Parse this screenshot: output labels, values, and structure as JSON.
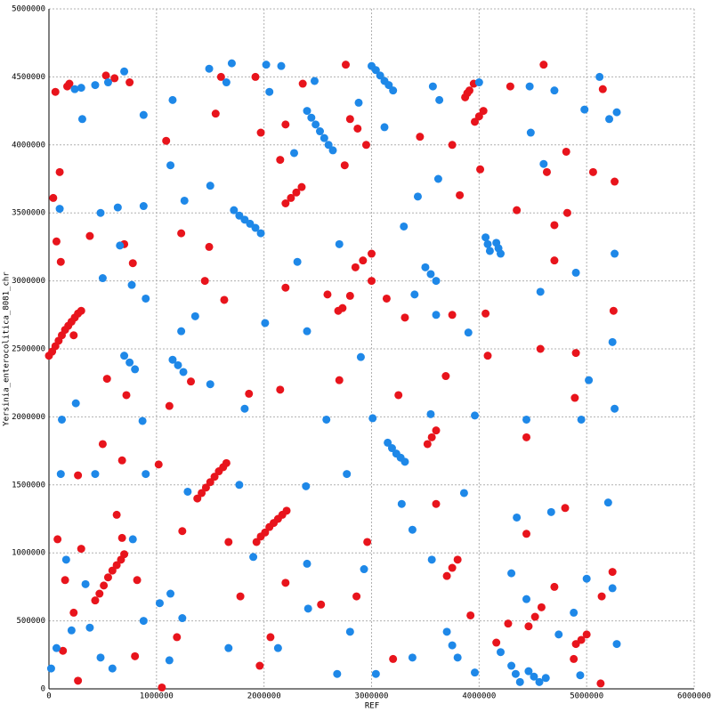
{
  "chart_data": {
    "type": "scatter",
    "x_label": "REF",
    "y_label": "Yersinia_enterocolitica_8081_chr",
    "xlim": [
      0,
      6000000
    ],
    "ylim": [
      0,
      5000000
    ],
    "xticks": [
      0,
      1000000,
      2000000,
      3000000,
      4000000,
      5000000,
      6000000
    ],
    "yticks": [
      0,
      500000,
      1000000,
      1500000,
      2000000,
      2500000,
      3000000,
      3500000,
      4000000,
      4500000,
      5000000
    ],
    "grid": true,
    "series": [
      {
        "color": "#e8141c",
        "x": [
          0,
          30000,
          60000,
          90000,
          120000,
          150000,
          180000,
          210000,
          240000,
          270000,
          300000,
          430000,
          470000,
          510000,
          550000,
          590000,
          630000,
          670000,
          700000,
          1380000,
          1420000,
          1460000,
          1500000,
          1540000,
          1580000,
          1620000,
          1650000,
          1930000,
          1970000,
          2010000,
          2050000,
          2090000,
          2130000,
          2170000,
          2210000,
          2200000,
          2250000,
          2300000,
          2350000,
          3960000,
          4000000,
          4040000,
          3870000,
          3910000,
          3950000,
          3520000,
          3560000,
          3600000,
          2850000,
          2920000,
          3000000,
          3700000,
          3750000,
          3800000,
          4900000,
          4950000,
          5000000,
          4460000,
          4520000,
          4580000,
          60000,
          170000,
          190000,
          530000,
          610000,
          750000,
          1090000,
          1550000,
          1600000,
          1920000,
          1970000,
          2200000,
          2360000,
          2760000,
          2800000,
          2870000,
          2950000,
          3750000,
          4290000,
          4600000,
          4630000,
          5150000,
          5060000,
          5260000,
          4810000,
          4820000,
          4010000,
          4350000,
          4700000,
          4700000,
          100000,
          40000,
          70000,
          110000,
          380000,
          700000,
          780000,
          1490000,
          1450000,
          1230000,
          2150000,
          2750000,
          3450000,
          3820000,
          3890000,
          3000000,
          2800000,
          2730000,
          2590000,
          2690000,
          3140000,
          3310000,
          3750000,
          4060000,
          4080000,
          4570000,
          4900000,
          5250000,
          4890000,
          4440000,
          3690000,
          3250000,
          2700000,
          2150000,
          1860000,
          1120000,
          720000,
          540000,
          230000,
          500000,
          680000,
          1020000,
          270000,
          80000,
          150000,
          300000,
          680000,
          820000,
          1240000,
          1670000,
          2200000,
          2530000,
          2960000,
          2860000,
          3200000,
          3600000,
          3920000,
          4160000,
          4270000,
          4440000,
          4700000,
          4800000,
          5140000,
          5240000,
          5130000,
          4880000,
          2060000,
          1960000,
          1780000,
          1190000,
          1050000,
          800000,
          270000,
          130000,
          230000,
          630000,
          1320000,
          2200000,
          1630000
        ],
        "values": [
          2450000,
          2480000,
          2520000,
          2560000,
          2600000,
          2640000,
          2670000,
          2700000,
          2730000,
          2760000,
          2780000,
          650000,
          700000,
          760000,
          820000,
          870000,
          910000,
          950000,
          990000,
          1400000,
          1440000,
          1480000,
          1520000,
          1560000,
          1600000,
          1630000,
          1660000,
          1080000,
          1120000,
          1150000,
          1190000,
          1220000,
          1250000,
          1280000,
          1310000,
          3570000,
          3610000,
          3650000,
          3690000,
          4170000,
          4210000,
          4250000,
          4350000,
          4400000,
          4450000,
          1800000,
          1850000,
          1900000,
          3100000,
          3150000,
          3200000,
          830000,
          890000,
          950000,
          330000,
          360000,
          400000,
          460000,
          530000,
          600000,
          4390000,
          4430000,
          4450000,
          4510000,
          4490000,
          4460000,
          4030000,
          4230000,
          4500000,
          4500000,
          4090000,
          4150000,
          4450000,
          4590000,
          4190000,
          4120000,
          4000000,
          4000000,
          4430000,
          4590000,
          3800000,
          4410000,
          3800000,
          3730000,
          3950000,
          3500000,
          3820000,
          3520000,
          3410000,
          3150000,
          3800000,
          3610000,
          3290000,
          3140000,
          3330000,
          3270000,
          3130000,
          3250000,
          3000000,
          3350000,
          3890000,
          3850000,
          4060000,
          3630000,
          4380000,
          3000000,
          2890000,
          2800000,
          2900000,
          2780000,
          2870000,
          2730000,
          2750000,
          2760000,
          2450000,
          2500000,
          2470000,
          2780000,
          2140000,
          1850000,
          2300000,
          2160000,
          2270000,
          2200000,
          2170000,
          2080000,
          2160000,
          2280000,
          2600000,
          1800000,
          1680000,
          1650000,
          1570000,
          1100000,
          800000,
          1030000,
          1110000,
          800000,
          1160000,
          1080000,
          780000,
          620000,
          1080000,
          680000,
          220000,
          1360000,
          540000,
          340000,
          480000,
          1140000,
          750000,
          1330000,
          680000,
          860000,
          40000,
          220000,
          380000,
          170000,
          680000,
          380000,
          10000,
          240000,
          60000,
          280000,
          560000,
          1280000,
          2260000,
          2950000,
          2860000
        ]
      },
      {
        "color": "#1e88e8",
        "x": [
          2400000,
          2440000,
          2480000,
          2520000,
          2560000,
          2600000,
          2640000,
          3000000,
          3040000,
          3080000,
          3120000,
          3160000,
          3200000,
          1720000,
          1770000,
          1820000,
          1870000,
          1920000,
          1970000,
          3150000,
          3190000,
          3230000,
          3270000,
          3310000,
          700000,
          750000,
          800000,
          1150000,
          1200000,
          1250000,
          3700000,
          3750000,
          3800000,
          4300000,
          4340000,
          4380000,
          4460000,
          4510000,
          4560000,
          4060000,
          4080000,
          4100000,
          4160000,
          4180000,
          4200000,
          3500000,
          3550000,
          3600000,
          20000,
          70000,
          160000,
          120000,
          100000,
          240000,
          300000,
          310000,
          430000,
          550000,
          700000,
          880000,
          1150000,
          1490000,
          1650000,
          1700000,
          2020000,
          2160000,
          2050000,
          2280000,
          2470000,
          2880000,
          3120000,
          3570000,
          3630000,
          4000000,
          4470000,
          4480000,
          4700000,
          4980000,
          5120000,
          5280000,
          5210000,
          4600000,
          3620000,
          3430000,
          3300000,
          2700000,
          2310000,
          1500000,
          1260000,
          1130000,
          880000,
          640000,
          480000,
          660000,
          500000,
          770000,
          900000,
          1230000,
          1360000,
          2010000,
          2400000,
          2900000,
          3400000,
          3600000,
          3900000,
          4570000,
          4900000,
          5260000,
          5240000,
          5020000,
          5260000,
          4950000,
          4440000,
          3960000,
          3550000,
          3010000,
          2580000,
          1820000,
          1500000,
          870000,
          250000,
          110000,
          430000,
          900000,
          1290000,
          1770000,
          2390000,
          2770000,
          3280000,
          3860000,
          4350000,
          4670000,
          5200000,
          5000000,
          4880000,
          4440000,
          4300000,
          3560000,
          3380000,
          2930000,
          2410000,
          2400000,
          1900000,
          1240000,
          1130000,
          1030000,
          880000,
          780000,
          340000,
          210000,
          380000,
          480000,
          590000,
          1120000,
          1670000,
          2130000,
          2680000,
          2800000,
          3040000,
          3380000,
          4200000,
          4740000,
          4940000,
          5280000,
          5240000,
          4620000,
          3960000
        ],
        "values": [
          4250000,
          4200000,
          4150000,
          4100000,
          4050000,
          4000000,
          3960000,
          4580000,
          4550000,
          4510000,
          4470000,
          4440000,
          4400000,
          3520000,
          3480000,
          3450000,
          3420000,
          3390000,
          3350000,
          1810000,
          1770000,
          1730000,
          1700000,
          1670000,
          2450000,
          2400000,
          2350000,
          2420000,
          2380000,
          2330000,
          420000,
          320000,
          230000,
          170000,
          110000,
          50000,
          130000,
          90000,
          50000,
          3320000,
          3270000,
          3220000,
          3280000,
          3240000,
          3200000,
          3100000,
          3050000,
          3000000,
          150000,
          300000,
          950000,
          1980000,
          3530000,
          4410000,
          4420000,
          4190000,
          4440000,
          4460000,
          4540000,
          4220000,
          4330000,
          4560000,
          4460000,
          4600000,
          4590000,
          4580000,
          4390000,
          3940000,
          4470000,
          4310000,
          4130000,
          4430000,
          4330000,
          4460000,
          4430000,
          4090000,
          4400000,
          4260000,
          4500000,
          4240000,
          4190000,
          3860000,
          3750000,
          3620000,
          3400000,
          3270000,
          3140000,
          3700000,
          3590000,
          3850000,
          3550000,
          3540000,
          3500000,
          3260000,
          3020000,
          2970000,
          2870000,
          2630000,
          2740000,
          2690000,
          2630000,
          2440000,
          2900000,
          2750000,
          2620000,
          2920000,
          3060000,
          3200000,
          2550000,
          2270000,
          2060000,
          1980000,
          1980000,
          2010000,
          2020000,
          1990000,
          1980000,
          2060000,
          2240000,
          1970000,
          2100000,
          1580000,
          1580000,
          1580000,
          1450000,
          1500000,
          1490000,
          1580000,
          1360000,
          1440000,
          1260000,
          1300000,
          1370000,
          810000,
          560000,
          660000,
          850000,
          950000,
          1170000,
          880000,
          590000,
          920000,
          970000,
          520000,
          700000,
          630000,
          500000,
          1100000,
          770000,
          430000,
          450000,
          230000,
          150000,
          210000,
          300000,
          300000,
          110000,
          420000,
          110000,
          230000,
          270000,
          400000,
          100000,
          330000,
          740000,
          80000,
          120000
        ]
      }
    ]
  }
}
